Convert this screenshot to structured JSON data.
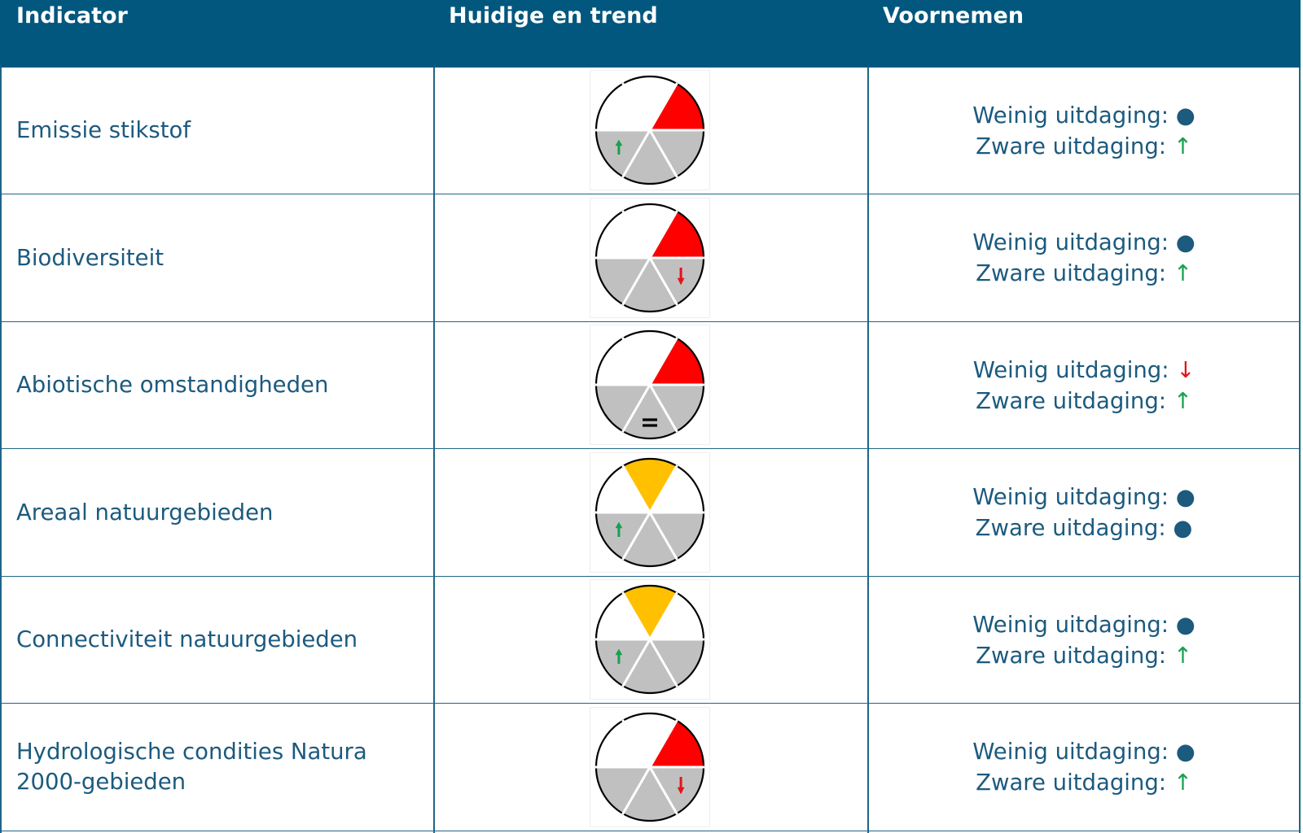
{
  "header": {
    "col1": "Indicator",
    "col2": "Huidige en trend",
    "col3": "Voornemen"
  },
  "labels": {
    "weinig": "Weinig uitdaging:",
    "zware": "Zware uitdaging:"
  },
  "colors": {
    "header_bg": "#02577e",
    "text": "#1c5a7e",
    "red": "#ff0000",
    "amber": "#ffc000",
    "grey": "#c0c0c0",
    "trend_up": "#16a14e",
    "trend_down": "#e3151b"
  },
  "rows": [
    {
      "indicator": "Emissie stikstof",
      "wheel": {
        "highlight_segment": "upper-right",
        "highlight_color": "red",
        "trend": "up",
        "trend_segment": "lower-left"
      },
      "weinig": "●",
      "zware": "↑"
    },
    {
      "indicator": "Biodiversiteit",
      "wheel": {
        "highlight_segment": "upper-right",
        "highlight_color": "red",
        "trend": "down",
        "trend_segment": "lower-right"
      },
      "weinig": "●",
      "zware": "↑"
    },
    {
      "indicator": "Abiotische omstandigheden",
      "wheel": {
        "highlight_segment": "upper-right",
        "highlight_color": "red",
        "trend": "equal",
        "trend_segment": "bottom"
      },
      "weinig": "↓",
      "zware": "↑"
    },
    {
      "indicator": "Areaal natuurgebieden",
      "wheel": {
        "highlight_segment": "top",
        "highlight_color": "amber",
        "trend": "up",
        "trend_segment": "lower-left"
      },
      "weinig": "●",
      "zware": "●"
    },
    {
      "indicator": "Connectiviteit natuurgebieden",
      "wheel": {
        "highlight_segment": "top",
        "highlight_color": "amber",
        "trend": "up",
        "trend_segment": "lower-left"
      },
      "weinig": "●",
      "zware": "↑"
    },
    {
      "indicator": "Hydrologische condities Natura\n2000-gebieden",
      "wheel": {
        "highlight_segment": "upper-right",
        "highlight_color": "red",
        "trend": "down",
        "trend_segment": "lower-right"
      },
      "weinig": "●",
      "zware": "↑"
    }
  ]
}
